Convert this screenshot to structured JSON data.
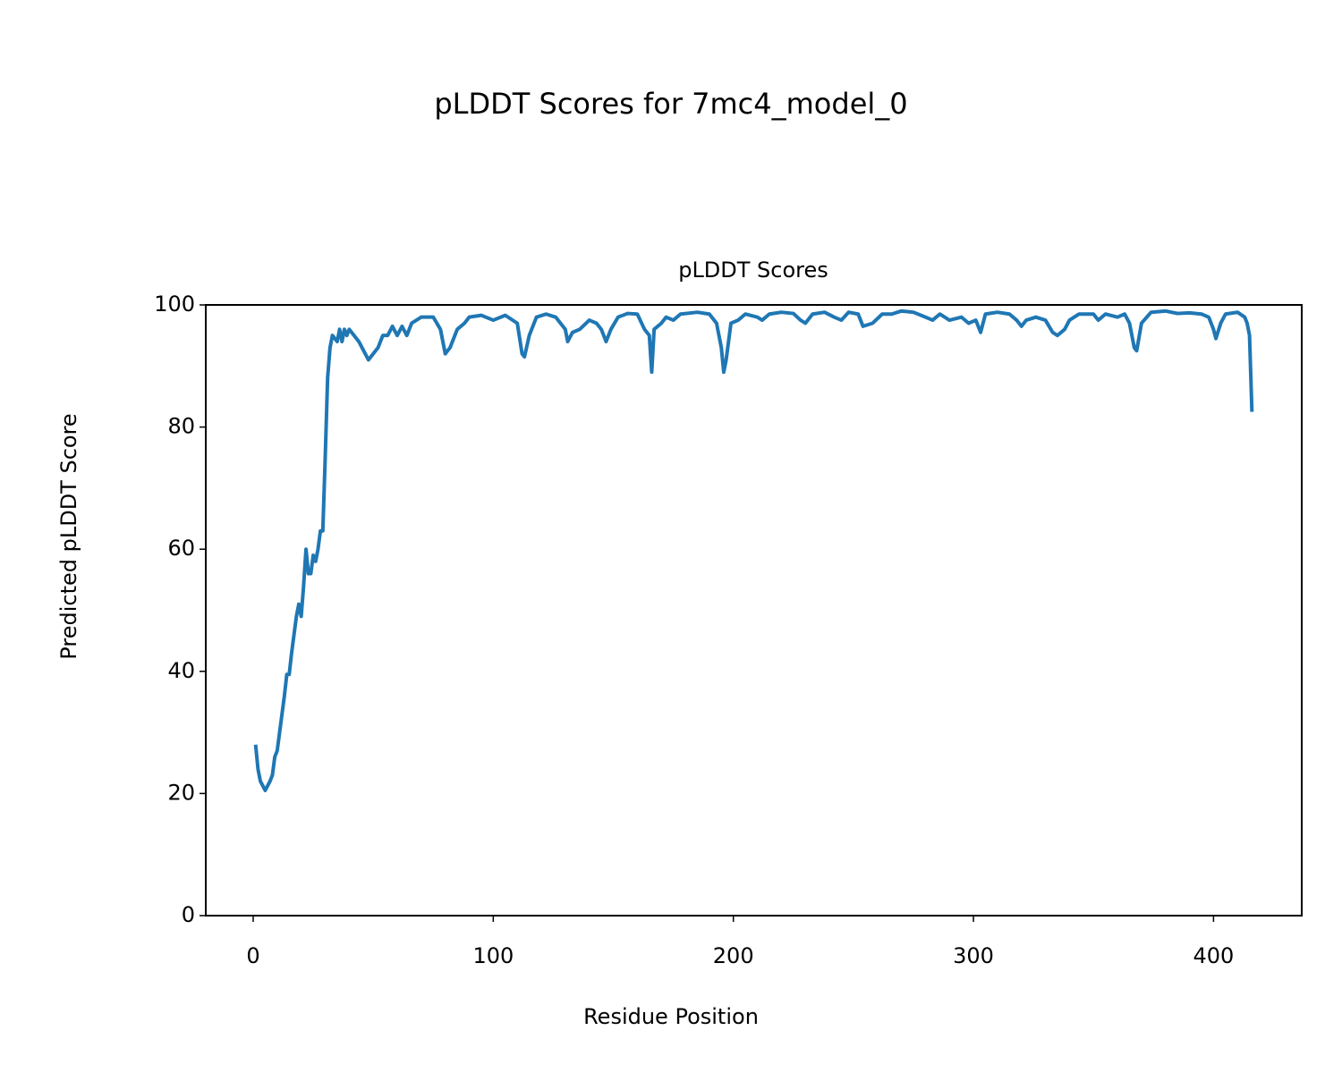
{
  "chart_data": {
    "type": "line",
    "title": "pLDDT Scores for 7mc4_model_0",
    "subtitle": "pLDDT Scores",
    "xlabel": "Residue Position",
    "ylabel": "Predicted pLDDT Score",
    "x": [
      1,
      2,
      3,
      5,
      7,
      8,
      9,
      10,
      11,
      13,
      14,
      15,
      16,
      17,
      18,
      19,
      20,
      21,
      22,
      23,
      24,
      25,
      26,
      27,
      28,
      29,
      30,
      31,
      32,
      33,
      35,
      36,
      37,
      38,
      39,
      40,
      42,
      44,
      46,
      48,
      50,
      52,
      54,
      56,
      58,
      60,
      62,
      64,
      66,
      70,
      75,
      78,
      80,
      82,
      85,
      88,
      90,
      95,
      100,
      105,
      110,
      112,
      113,
      115,
      118,
      122,
      126,
      130,
      131,
      133,
      136,
      140,
      143,
      145,
      147,
      149,
      152,
      156,
      160,
      163,
      165,
      166,
      167,
      170,
      172,
      175,
      178,
      185,
      190,
      193,
      195,
      196,
      197,
      199,
      202,
      205,
      210,
      212,
      215,
      220,
      225,
      228,
      230,
      233,
      238,
      242,
      245,
      248,
      252,
      254,
      258,
      262,
      266,
      270,
      275,
      280,
      283,
      286,
      290,
      295,
      298,
      301,
      303,
      305,
      310,
      315,
      318,
      320,
      322,
      326,
      330,
      333,
      335,
      338,
      340,
      344,
      350,
      352,
      355,
      360,
      363,
      365,
      367,
      368,
      370,
      374,
      380,
      385,
      390,
      395,
      398,
      400,
      401,
      403,
      405,
      410,
      413,
      414,
      415,
      416
    ],
    "series": [
      {
        "name": "pLDDT",
        "color": "#1f77b4",
        "values": [
          28,
          24,
          22,
          20.5,
          22,
          23,
          26,
          27,
          30,
          36,
          39.5,
          39.5,
          43,
          46,
          49,
          51,
          49,
          54,
          60,
          56,
          56,
          59,
          58,
          60,
          63,
          63,
          75,
          88,
          93,
          95,
          94,
          96,
          94,
          96,
          95,
          96,
          95,
          94,
          92.5,
          91,
          92,
          93,
          95,
          95,
          96.5,
          95,
          96.5,
          95,
          97,
          98,
          98,
          96,
          92,
          93,
          96,
          97,
          98,
          98.3,
          97.5,
          98.3,
          97,
          92,
          91.5,
          95,
          98,
          98.5,
          98,
          96,
          94,
          95.5,
          96,
          97.5,
          97,
          96,
          94,
          96,
          98,
          98.6,
          98.5,
          96,
          95,
          89,
          96,
          97,
          98,
          97.5,
          98.5,
          98.8,
          98.5,
          97,
          93,
          89,
          91,
          97,
          97.5,
          98.5,
          98,
          97.5,
          98.5,
          98.8,
          98.6,
          97.5,
          97,
          98.5,
          98.8,
          98,
          97.5,
          98.8,
          98.5,
          96.5,
          97,
          98.5,
          98.5,
          99,
          98.8,
          98,
          97.5,
          98.5,
          97.5,
          98,
          97,
          97.5,
          95.5,
          98.5,
          98.8,
          98.5,
          97.5,
          96.5,
          97.5,
          98,
          97.5,
          95.5,
          95,
          96,
          97.5,
          98.5,
          98.5,
          97.5,
          98.5,
          98,
          98.5,
          97,
          93,
          92.5,
          97,
          98.8,
          99,
          98.6,
          98.7,
          98.5,
          98,
          96,
          94.5,
          97,
          98.5,
          98.8,
          98,
          97,
          95,
          82.5
        ]
      }
    ],
    "xlim": [
      -19.75,
      436.75
    ],
    "xticks": [
      0,
      100,
      200,
      300,
      400
    ],
    "ylim": [
      0,
      100
    ],
    "yticks": [
      0,
      20,
      40,
      60,
      80,
      100
    ]
  }
}
